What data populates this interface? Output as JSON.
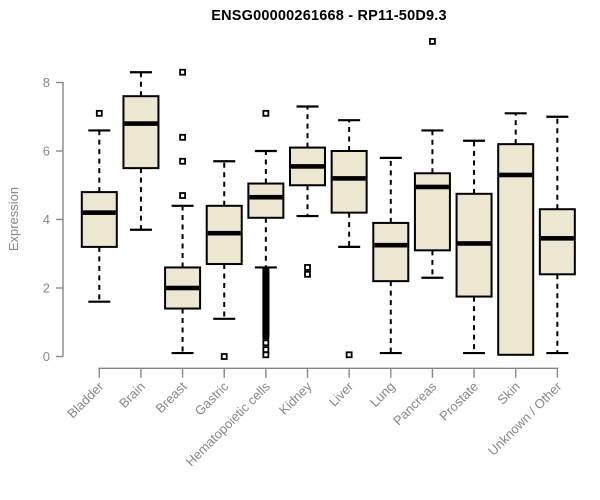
{
  "title": "ENSG00000261668 - RP11-50D9.3",
  "colors": {
    "box_fill": "#ece7d0",
    "box_border": "#000000",
    "median": "#000000",
    "whisker": "#000000",
    "axis": "#878787",
    "axis_text": "#878787",
    "title_text": "#000000",
    "background": "#ffffff"
  },
  "chart_data": {
    "type": "boxplot",
    "title": "ENSG00000261668 - RP11-50D9.3",
    "xlabel": "",
    "ylabel": "Expression",
    "ylim": [
      0,
      9.3
    ],
    "yticks": [
      0,
      2,
      4,
      6,
      8
    ],
    "grid": false,
    "legend": "none",
    "categories": [
      "Bladder",
      "Brain",
      "Breast",
      "Gastric",
      "Hematopoietic cells",
      "Kidney",
      "Liver",
      "Lung",
      "Pancreas",
      "Prostate",
      "Skin",
      "Unknown / Other"
    ],
    "series": [
      {
        "name": "Bladder",
        "whisker_low": 1.6,
        "q1": 3.2,
        "median": 4.2,
        "q3": 4.8,
        "whisker_high": 6.6,
        "outliers": [
          7.1
        ]
      },
      {
        "name": "Brain",
        "whisker_low": 3.7,
        "q1": 5.5,
        "median": 6.8,
        "q3": 7.6,
        "whisker_high": 8.3,
        "outliers": []
      },
      {
        "name": "Breast",
        "whisker_low": 0.1,
        "q1": 1.4,
        "median": 2.0,
        "q3": 2.6,
        "whisker_high": 4.4,
        "outliers": [
          8.3,
          6.4,
          5.7,
          4.7
        ]
      },
      {
        "name": "Gastric",
        "whisker_low": 1.1,
        "q1": 2.7,
        "median": 3.6,
        "q3": 4.4,
        "whisker_high": 5.7,
        "outliers": [
          0.0
        ]
      },
      {
        "name": "Hematopoietic cells",
        "whisker_low": 2.6,
        "q1": 4.05,
        "median": 4.65,
        "q3": 5.05,
        "whisker_high": 6.0,
        "outliers": [
          7.1,
          2.5,
          2.45,
          2.4,
          2.35,
          2.3,
          2.25,
          2.2,
          2.15,
          2.1,
          2.05,
          2.0,
          1.95,
          1.9,
          1.85,
          1.8,
          1.75,
          1.7,
          1.65,
          1.6,
          1.55,
          1.5,
          1.45,
          1.4,
          1.35,
          1.3,
          1.25,
          1.2,
          1.15,
          1.1,
          1.05,
          1.0,
          0.95,
          0.9,
          0.85,
          0.8,
          0.75,
          0.7,
          0.65,
          0.6,
          0.4,
          0.2,
          0.05
        ]
      },
      {
        "name": "Kidney",
        "whisker_low": 4.1,
        "q1": 5.0,
        "median": 5.55,
        "q3": 6.1,
        "whisker_high": 7.3,
        "outliers": [
          2.6,
          2.4
        ]
      },
      {
        "name": "Liver",
        "whisker_low": 3.2,
        "q1": 4.2,
        "median": 5.2,
        "q3": 6.0,
        "whisker_high": 6.9,
        "outliers": [
          0.05
        ]
      },
      {
        "name": "Lung",
        "whisker_low": 0.1,
        "q1": 2.2,
        "median": 3.25,
        "q3": 3.9,
        "whisker_high": 5.8,
        "outliers": []
      },
      {
        "name": "Pancreas",
        "whisker_low": 2.3,
        "q1": 3.1,
        "median": 4.95,
        "q3": 5.35,
        "whisker_high": 6.6,
        "outliers": [
          9.2
        ]
      },
      {
        "name": "Prostate",
        "whisker_low": 0.1,
        "q1": 1.75,
        "median": 3.3,
        "q3": 4.75,
        "whisker_high": 6.3,
        "outliers": []
      },
      {
        "name": "Skin",
        "whisker_low": 0.05,
        "q1": 0.05,
        "median": 5.3,
        "q3": 6.2,
        "whisker_high": 7.1,
        "outliers": []
      },
      {
        "name": "Unknown / Other",
        "whisker_low": 0.1,
        "q1": 2.4,
        "median": 3.45,
        "q3": 4.3,
        "whisker_high": 7.0,
        "outliers": []
      }
    ]
  }
}
